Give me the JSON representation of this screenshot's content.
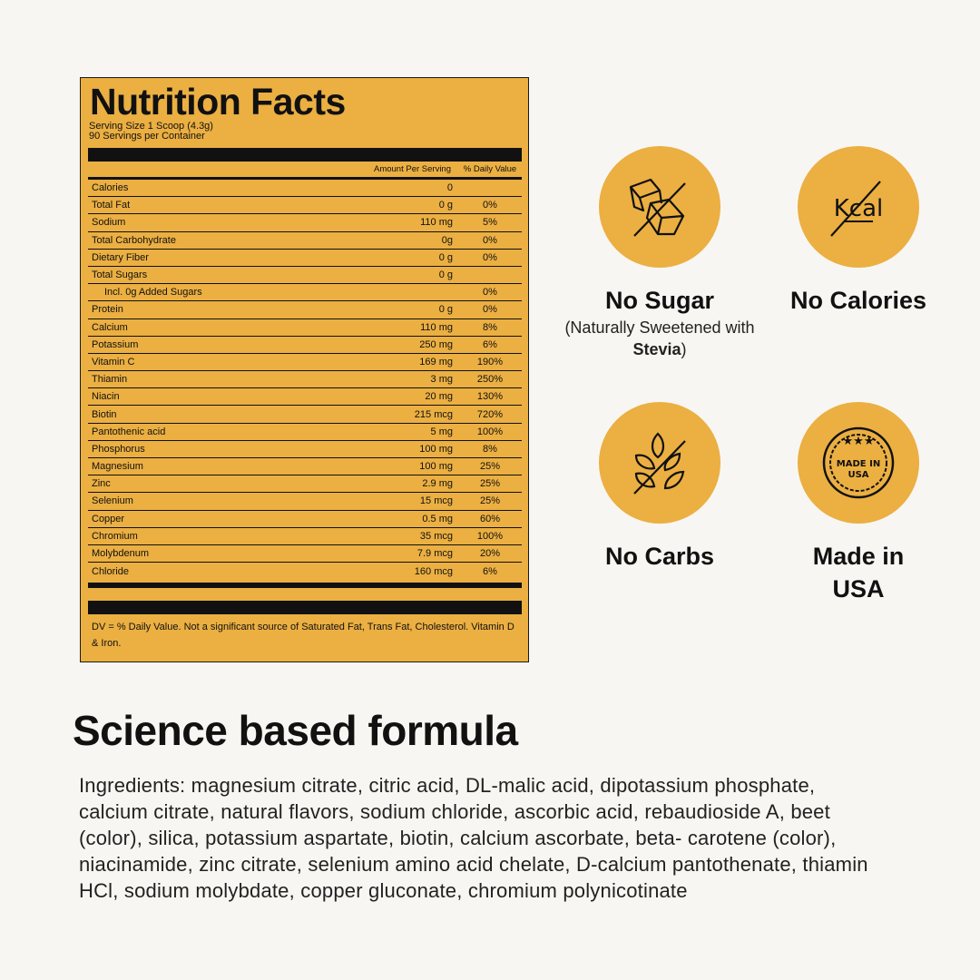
{
  "label": {
    "title": "Nutrition Facts",
    "serving_size": "Serving Size 1 Scoop (4.3g)",
    "servings": "90 Servings per Container",
    "col_amount": "Amount Per Serving",
    "col_dv": "% Daily Value",
    "rows": [
      {
        "name": "Calories",
        "amount": "0",
        "dv": ""
      },
      {
        "name": "Total Fat",
        "amount": "0 g",
        "dv": "0%"
      },
      {
        "name": "Sodium",
        "amount": "110 mg",
        "dv": "5%"
      },
      {
        "name": "Total Carbohydrate",
        "amount": "0g",
        "dv": "0%"
      },
      {
        "name": "Dietary Fiber",
        "amount": "0 g",
        "dv": "0%"
      },
      {
        "name": "Total Sugars",
        "amount": "0 g",
        "dv": ""
      },
      {
        "name": "Incl. 0g Added Sugars",
        "amount": "",
        "dv": "0%",
        "indent": true
      },
      {
        "name": "Protein",
        "amount": "0 g",
        "dv": "0%"
      },
      {
        "name": "Calcium",
        "amount": "110 mg",
        "dv": "8%"
      },
      {
        "name": "Potassium",
        "amount": "250 mg",
        "dv": "6%"
      },
      {
        "name": "Vitamin C",
        "amount": "169 mg",
        "dv": "190%"
      },
      {
        "name": "Thiamin",
        "amount": "3 mg",
        "dv": "250%"
      },
      {
        "name": "Niacin",
        "amount": "20 mg",
        "dv": "130%"
      },
      {
        "name": "Biotin",
        "amount": "215 mcg",
        "dv": "720%"
      },
      {
        "name": "Pantothenic acid",
        "amount": "5 mg",
        "dv": "100%"
      },
      {
        "name": "Phosphorus",
        "amount": "100 mg",
        "dv": "8%"
      },
      {
        "name": "Magnesium",
        "amount": "100 mg",
        "dv": "25%"
      },
      {
        "name": "Zinc",
        "amount": "2.9 mg",
        "dv": "25%"
      },
      {
        "name": "Selenium",
        "amount": "15 mcg",
        "dv": "25%"
      },
      {
        "name": "Copper",
        "amount": "0.5 mg",
        "dv": "60%"
      },
      {
        "name": "Chromium",
        "amount": "35 mcg",
        "dv": "100%"
      },
      {
        "name": "Molybdenum",
        "amount": "7.9 mcg",
        "dv": "20%"
      },
      {
        "name": "Chloride",
        "amount": "160 mcg",
        "dv": "6%"
      }
    ],
    "footnote": "DV = % Daily Value. Not a significant source of Saturated Fat, Trans Fat, Cholesterol. Vitamin D & Iron."
  },
  "badges": {
    "no_sugar": {
      "title": "No Sugar",
      "sub_pre": "(Naturally Sweetened with ",
      "sub_bold": "Stevia",
      "sub_post": ")",
      "icon": "sugar-cubes-crossed-icon"
    },
    "no_calories": {
      "title": "No Calories",
      "icon_text": "Kcal",
      "icon": "kcal-crossed-icon"
    },
    "no_carbs": {
      "title": "No Carbs",
      "icon": "grain-crossed-icon"
    },
    "made_in_usa": {
      "title": "Made in USA",
      "seal_line1": "MADE IN",
      "seal_line2": "USA",
      "icon": "made-in-usa-seal-icon"
    }
  },
  "colors": {
    "accent": "#ebaf42",
    "background": "#f8f6f2"
  },
  "science": {
    "heading": "Science based formula",
    "ingredients": "Ingredients: magnesium citrate, citric acid, DL-malic acid, dipotassium phosphate, calcium citrate, natural flavors, sodium chloride, ascorbic acid, rebaudioside A, beet (color), silica, potassium aspartate, biotin, calcium ascorbate, beta- carotene (color), niacinamide, zinc citrate, selenium amino acid chelate, D-calcium pantothenate, thiamin HCl, sodium molybdate, copper gluconate, chromium polynicotinate"
  }
}
